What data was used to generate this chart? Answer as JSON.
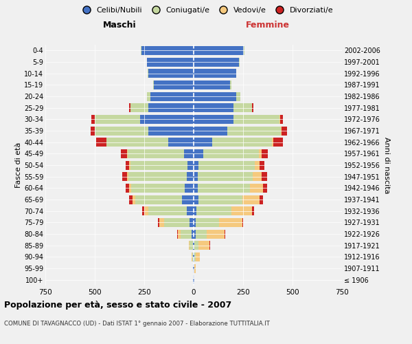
{
  "age_groups": [
    "100+",
    "95-99",
    "90-94",
    "85-89",
    "80-84",
    "75-79",
    "70-74",
    "65-69",
    "60-64",
    "55-59",
    "50-54",
    "45-49",
    "40-44",
    "35-39",
    "30-34",
    "25-29",
    "20-24",
    "15-19",
    "10-14",
    "5-9",
    "0-4"
  ],
  "birth_years": [
    "≤ 1906",
    "1907-1911",
    "1912-1916",
    "1917-1921",
    "1922-1926",
    "1927-1931",
    "1932-1936",
    "1937-1941",
    "1942-1946",
    "1947-1951",
    "1952-1956",
    "1957-1961",
    "1962-1966",
    "1967-1971",
    "1972-1976",
    "1977-1981",
    "1982-1986",
    "1987-1991",
    "1992-1996",
    "1997-2001",
    "2002-2006"
  ],
  "male": {
    "celibi": [
      2,
      2,
      3,
      5,
      10,
      20,
      35,
      60,
      45,
      35,
      30,
      50,
      130,
      230,
      270,
      230,
      220,
      200,
      230,
      235,
      265
    ],
    "coniugati": [
      0,
      1,
      5,
      15,
      55,
      130,
      195,
      235,
      270,
      295,
      290,
      285,
      310,
      270,
      230,
      90,
      15,
      5,
      2,
      2,
      2
    ],
    "vedovi": [
      0,
      0,
      2,
      5,
      15,
      25,
      20,
      15,
      10,
      8,
      5,
      3,
      2,
      1,
      1,
      0,
      0,
      0,
      0,
      0,
      0
    ],
    "divorziati": [
      0,
      0,
      0,
      0,
      2,
      5,
      10,
      15,
      18,
      22,
      18,
      30,
      50,
      20,
      15,
      5,
      2,
      0,
      0,
      0,
      0
    ]
  },
  "female": {
    "nubili": [
      2,
      2,
      4,
      5,
      10,
      10,
      15,
      25,
      20,
      20,
      25,
      50,
      95,
      170,
      200,
      200,
      215,
      185,
      215,
      230,
      255
    ],
    "coniugate": [
      0,
      2,
      8,
      20,
      55,
      120,
      175,
      220,
      265,
      280,
      285,
      280,
      300,
      270,
      235,
      95,
      20,
      5,
      2,
      2,
      2
    ],
    "vedove": [
      2,
      5,
      20,
      55,
      90,
      115,
      105,
      90,
      65,
      45,
      25,
      15,
      8,
      3,
      2,
      1,
      0,
      0,
      0,
      0,
      0
    ],
    "divorziate": [
      0,
      0,
      0,
      2,
      3,
      5,
      10,
      15,
      22,
      28,
      22,
      30,
      50,
      30,
      15,
      5,
      2,
      0,
      0,
      0,
      0
    ]
  },
  "colors": {
    "celibi": "#4472c4",
    "coniugati": "#c5d8a0",
    "vedovi": "#f5c97e",
    "divorziati": "#cc2222"
  },
  "title": "Popolazione per età, sesso e stato civile - 2007",
  "subtitle": "COMUNE DI TAVAGNACCO (UD) - Dati ISTAT 1° gennaio 2007 - Elaborazione TUTTITALIA.IT",
  "xlabel_left": "Maschi",
  "xlabel_right": "Femmine",
  "ylabel_left": "Fasce di età",
  "ylabel_right": "Anni di nascita",
  "xlim": 750,
  "legend": [
    "Celibi/Nubili",
    "Coniugati/e",
    "Vedovi/e",
    "Divorziati/e"
  ],
  "background_color": "#f0f0f0"
}
